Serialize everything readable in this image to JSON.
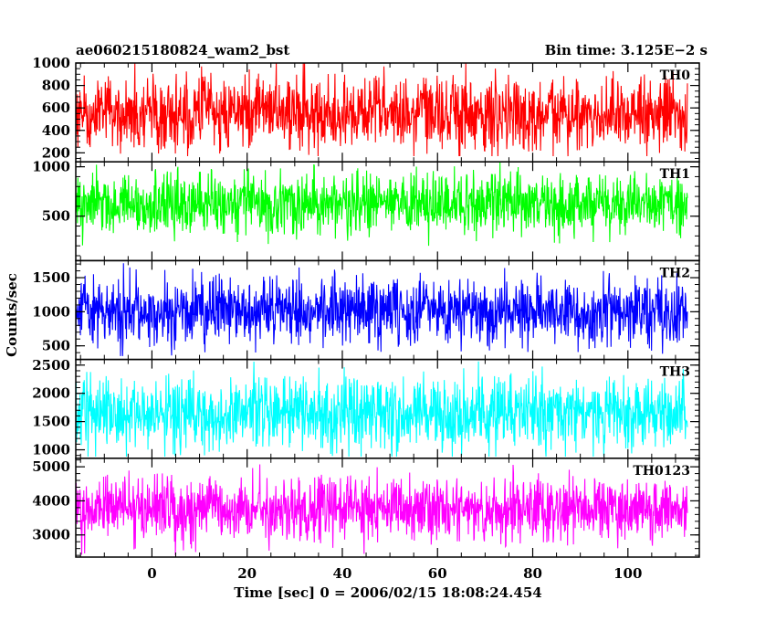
{
  "chart_data": {
    "type": "line",
    "title_left": "ae060215180824_wam2_bst",
    "title_right": "Bin time: 3.125E−2 s",
    "xlabel": "Time [sec] 0 = 2006/02/15 18:08:24.454",
    "ylabel": "Counts/sec",
    "xlim": [
      -16,
      115
    ],
    "x_start": -16,
    "x_end": 112.5,
    "x_ticks": [
      0,
      20,
      40,
      60,
      80,
      100
    ],
    "x_tick_labels": [
      "0",
      "20",
      "40",
      "60",
      "80",
      "100"
    ],
    "panels": [
      {
        "name": "TH0",
        "color": "#ff0000",
        "ylim": [
          120,
          1000
        ],
        "y_ticks": [
          200,
          400,
          600,
          800,
          1000
        ],
        "y_tick_labels": [
          "200",
          "400",
          "600",
          "800",
          "1000"
        ],
        "y_minor_step": 50,
        "mean": 560,
        "spread": 170,
        "min": 170,
        "max": 1000
      },
      {
        "name": "TH1",
        "color": "#00ff00",
        "ylim": [
          50,
          1050
        ],
        "y_ticks": [
          500,
          1000
        ],
        "y_tick_labels": [
          "500",
          "1000"
        ],
        "y_minor_step": 100,
        "mean": 620,
        "spread": 160,
        "min": 100,
        "max": 1050
      },
      {
        "name": "TH2",
        "color": "#0000ff",
        "ylim": [
          300,
          1750
        ],
        "y_ticks": [
          500,
          1000,
          1500
        ],
        "y_tick_labels": [
          "500",
          "1000",
          "1500"
        ],
        "y_minor_step": 100,
        "mean": 1000,
        "spread": 250,
        "min": 350,
        "max": 1750
      },
      {
        "name": "TH3",
        "color": "#00ffff",
        "ylim": [
          850,
          2600
        ],
        "y_ticks": [
          1000,
          1500,
          2000,
          2500
        ],
        "y_tick_labels": [
          "1000",
          "1500",
          "2000",
          "2500"
        ],
        "y_minor_step": 100,
        "mean": 1650,
        "spread": 320,
        "min": 880,
        "max": 2600
      },
      {
        "name": "TH0123",
        "color": "#ff00ff",
        "ylim": [
          2350,
          5250
        ],
        "y_ticks": [
          3000,
          4000,
          5000
        ],
        "y_tick_labels": [
          "3000",
          "4000",
          "5000"
        ],
        "y_minor_step": 200,
        "mean": 3750,
        "spread": 480,
        "min": 2400,
        "max": 5250
      }
    ]
  }
}
